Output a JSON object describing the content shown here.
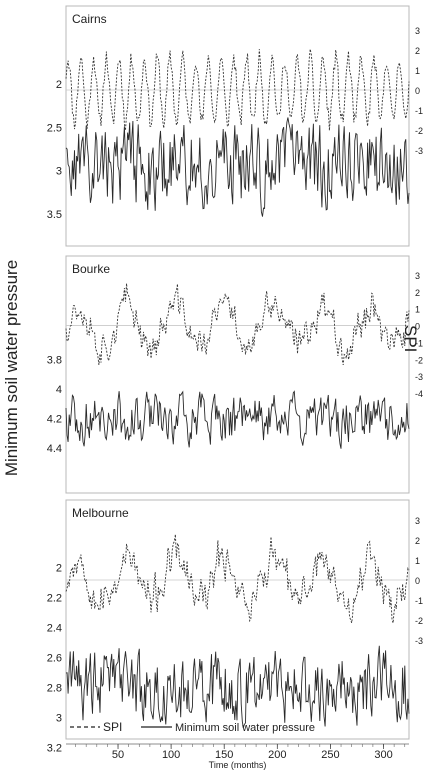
{
  "figure": {
    "left_axis_label": "Minimum soil water pressure",
    "right_axis_label": "SPI",
    "x_axis_label": "Time (months)",
    "legend": [
      {
        "label": "SPI",
        "style": "dashed"
      },
      {
        "label": "Minimum soil water pressure",
        "style": "solid"
      }
    ]
  },
  "colors": {
    "spi_line": "#333333",
    "swp_line": "#2a2a2a",
    "frame": "#b8b8b8",
    "zero_line": "#c8c8c8"
  },
  "chart_data": [
    {
      "type": "line",
      "panel": "Cairns",
      "x_range": [
        1,
        324
      ],
      "x_ticks": [
        50,
        100,
        150,
        200,
        250,
        300
      ],
      "spi": {
        "name": "SPI",
        "ylim": [
          -3,
          3
        ],
        "ticks": [
          -3,
          -2,
          -1,
          0,
          1,
          2,
          3
        ],
        "amplitude": 1.6,
        "cycle_months": 12,
        "seed": 11
      },
      "swp": {
        "name": "Minimum soil water pressure",
        "ylim": [
          2.0,
          3.8
        ],
        "ticks": [
          2,
          2.5,
          3,
          3.5
        ],
        "mean": 2.95,
        "spread": 0.35,
        "seed": 23
      }
    },
    {
      "type": "line",
      "panel": "Bourke",
      "x_range": [
        1,
        324
      ],
      "x_ticks": [
        50,
        100,
        150,
        200,
        250,
        300
      ],
      "spi": {
        "name": "SPI",
        "ylim": [
          -4,
          3
        ],
        "ticks": [
          -4,
          -3,
          -2,
          -1,
          0,
          1,
          2,
          3
        ],
        "amplitude": 1.0,
        "cycle_months": 0,
        "seed": 37
      },
      "swp": {
        "name": "Minimum soil water pressure",
        "ylim": [
          3.7,
          4.55
        ],
        "ticks": [
          3.8,
          4,
          4.2,
          4.4
        ],
        "mean": 4.2,
        "spread": 0.12,
        "seed": 41
      }
    },
    {
      "type": "line",
      "panel": "Melbourne",
      "x_range": [
        1,
        324
      ],
      "x_ticks": [
        50,
        100,
        150,
        200,
        250,
        300
      ],
      "spi": {
        "name": "SPI",
        "ylim": [
          -3,
          3
        ],
        "ticks": [
          -3,
          -2,
          -1,
          0,
          1,
          2,
          3
        ],
        "amplitude": 0.9,
        "cycle_months": 0,
        "seed": 53
      },
      "swp": {
        "name": "Minimum soil water pressure",
        "ylim": [
          1.85,
          3.25
        ],
        "ticks": [
          2,
          2.2,
          2.4,
          2.6,
          2.8,
          3,
          3.2
        ],
        "mean": 2.8,
        "spread": 0.17,
        "seed": 67
      }
    }
  ]
}
